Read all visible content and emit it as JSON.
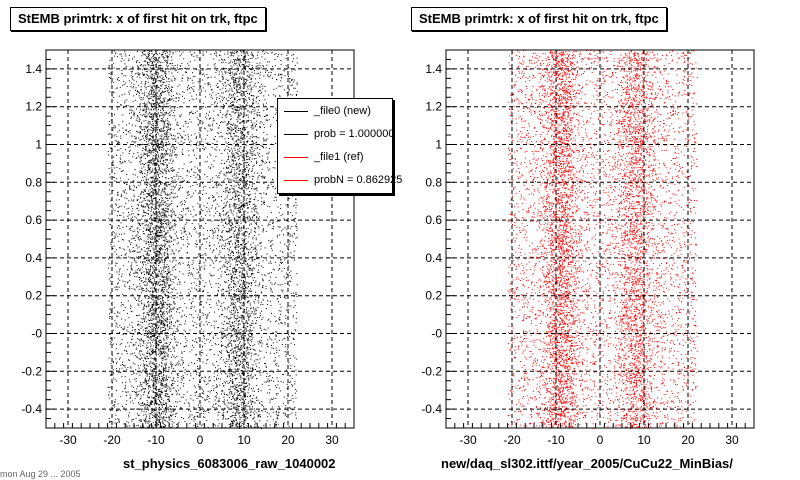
{
  "chart_data": [
    {
      "type": "scatter",
      "title": "StEMB primtrk: x of first hit on trk, ftpc",
      "xlabel": "st_physics_6083006_raw_1040002",
      "ylabel": "",
      "xlim": [
        -35,
        35
      ],
      "ylim": [
        -0.5,
        1.5
      ],
      "x_ticks": [
        -30,
        -20,
        -10,
        0,
        10,
        20,
        30
      ],
      "y_ticks": [
        -0.4,
        -0.2,
        0,
        0.2,
        0.4,
        0.6,
        0.8,
        1,
        1.2,
        1.4
      ],
      "x_tick_labels": [
        "-30",
        "-20",
        "-10",
        "0",
        "10",
        "20",
        "30"
      ],
      "y_tick_labels": [
        "-0.4",
        "-0.2",
        "-0",
        "0.2",
        "0.4",
        "0.6",
        "0.8",
        "1",
        "1.2",
        "1.4"
      ],
      "grid": true,
      "legend_position": "top-right",
      "series": [
        {
          "name": "_file0 (new)",
          "color": "#000000",
          "x_range": [
            -21,
            22
          ],
          "density_peaks_x": [
            -10,
            9
          ]
        }
      ],
      "legend": [
        {
          "label": "_file0 (new)",
          "color": "#000000"
        },
        {
          "label": "prob = 1.000000",
          "color": "#000000"
        },
        {
          "label": "_file1 (ref)",
          "color": "#ff0000"
        },
        {
          "label": "probN = 0.862925",
          "color": "#ff0000"
        }
      ]
    },
    {
      "type": "scatter",
      "title": "StEMB primtrk: x of first hit on trk, ftpc",
      "xlabel": "new/daq_sl302.ittf/year_2005/CuCu22_MinBias/",
      "ylabel": "",
      "xlim": [
        -35,
        35
      ],
      "ylim": [
        -0.5,
        1.5
      ],
      "x_ticks": [
        -30,
        -20,
        -10,
        0,
        10,
        20,
        30
      ],
      "y_ticks": [
        -0.4,
        -0.2,
        0,
        0.2,
        0.4,
        0.6,
        0.8,
        1,
        1.2,
        1.4
      ],
      "x_tick_labels": [
        "-30",
        "-20",
        "-10",
        "0",
        "10",
        "20",
        "30"
      ],
      "y_tick_labels": [
        "-0.4",
        "-0.2",
        "-0",
        "0.2",
        "0.4",
        "0.6",
        "0.8",
        "1",
        "1.2",
        "1.4"
      ],
      "grid": true,
      "series": [
        {
          "name": "_file1 (ref)",
          "color": "#ff0000",
          "x_range": [
            -21,
            22
          ],
          "density_peaks_x": [
            -9,
            8
          ]
        }
      ]
    }
  ],
  "footer_text": "mon Aug 29 ... 2005"
}
